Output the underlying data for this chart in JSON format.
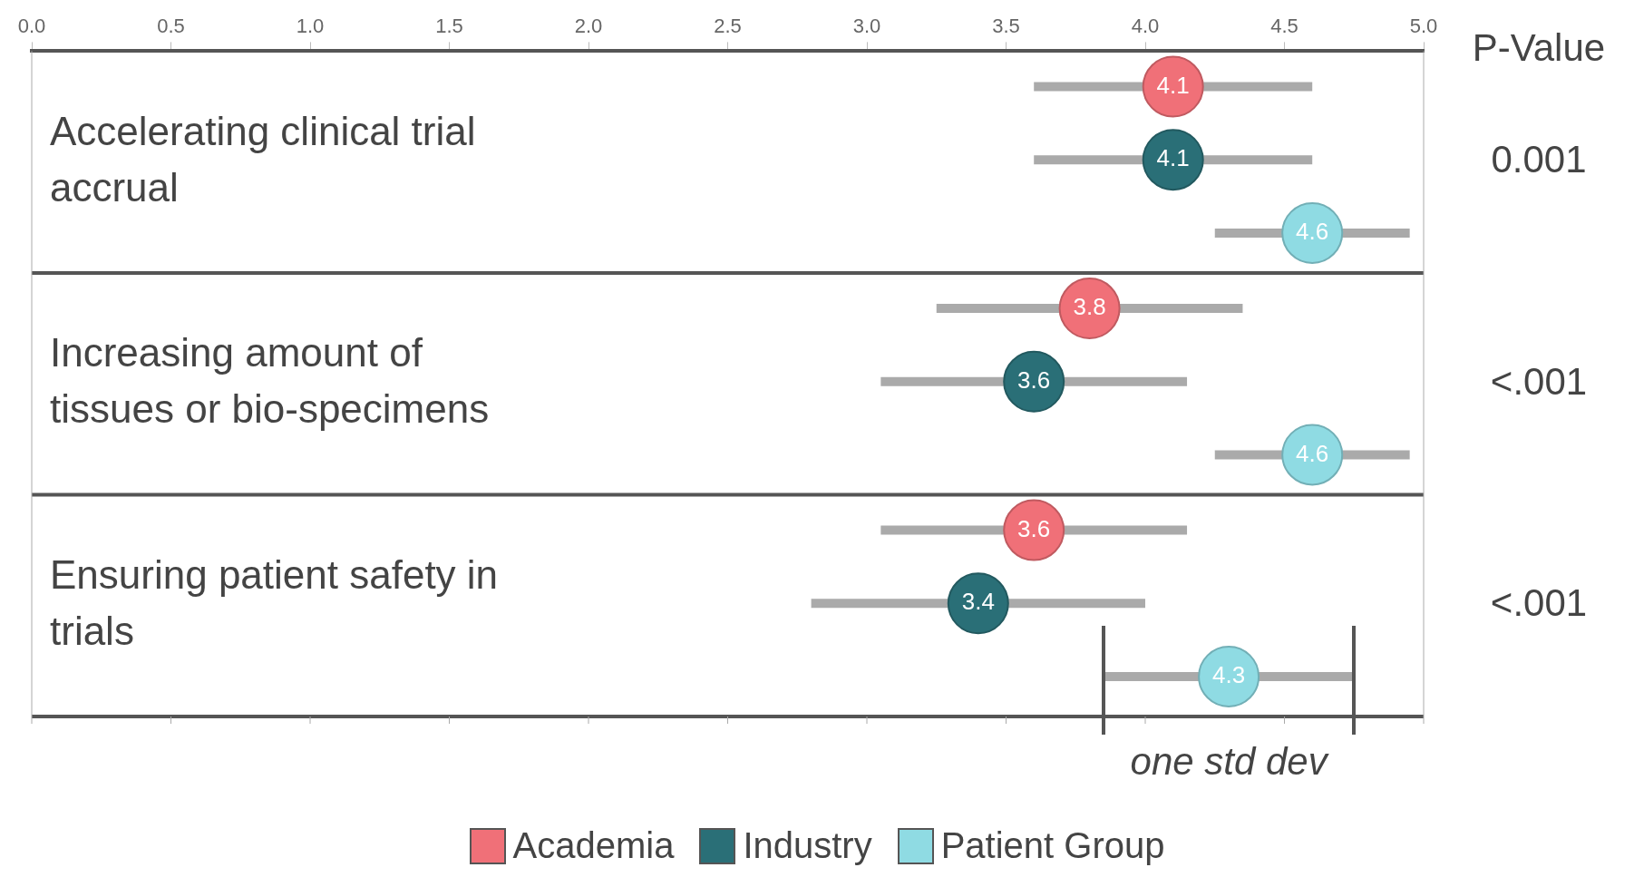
{
  "chart_data": {
    "type": "scatter",
    "orientation": "horizontal",
    "categories": [
      "Accelerating clinical trial accrual",
      "Increasing amount of tissues or bio-specimens",
      "Ensuring patient safety in trials"
    ],
    "series": [
      {
        "name": "Academia",
        "color": "#f07078",
        "values": [
          4.1,
          3.8,
          3.6
        ],
        "errors": [
          [
            3.6,
            4.6
          ],
          [
            3.25,
            4.35
          ],
          [
            3.05,
            4.15
          ]
        ]
      },
      {
        "name": "Industry",
        "color": "#2a6f77",
        "values": [
          4.1,
          3.6,
          3.4
        ],
        "errors": [
          [
            3.6,
            4.6
          ],
          [
            3.05,
            4.15
          ],
          [
            2.8,
            4.0
          ]
        ]
      },
      {
        "name": "Patient Group",
        "color": "#8fdbe3",
        "values": [
          4.6,
          4.6,
          4.3
        ],
        "errors": [
          [
            4.25,
            4.95
          ],
          [
            4.25,
            4.95
          ],
          [
            3.85,
            4.75
          ]
        ]
      }
    ],
    "xlim": [
      0,
      5
    ],
    "xticks": [
      {
        "value": 0,
        "label": "0.0"
      },
      0.5,
      {
        "value": 1,
        "label": "1.0"
      },
      1.5,
      {
        "value": 2,
        "label": "2.0"
      },
      2.5,
      {
        "value": 3,
        "label": "3.0"
      },
      3.5,
      {
        "value": 4,
        "label": "4.0"
      },
      4.5,
      {
        "value": 5,
        "label": "5.0"
      }
    ],
    "data_labels": true,
    "legend": "bottom",
    "grid": false,
    "marker": "circle",
    "annotations": [
      "P-Value",
      "0.001",
      "<.001",
      "<.001",
      "one std dev"
    ]
  }
}
